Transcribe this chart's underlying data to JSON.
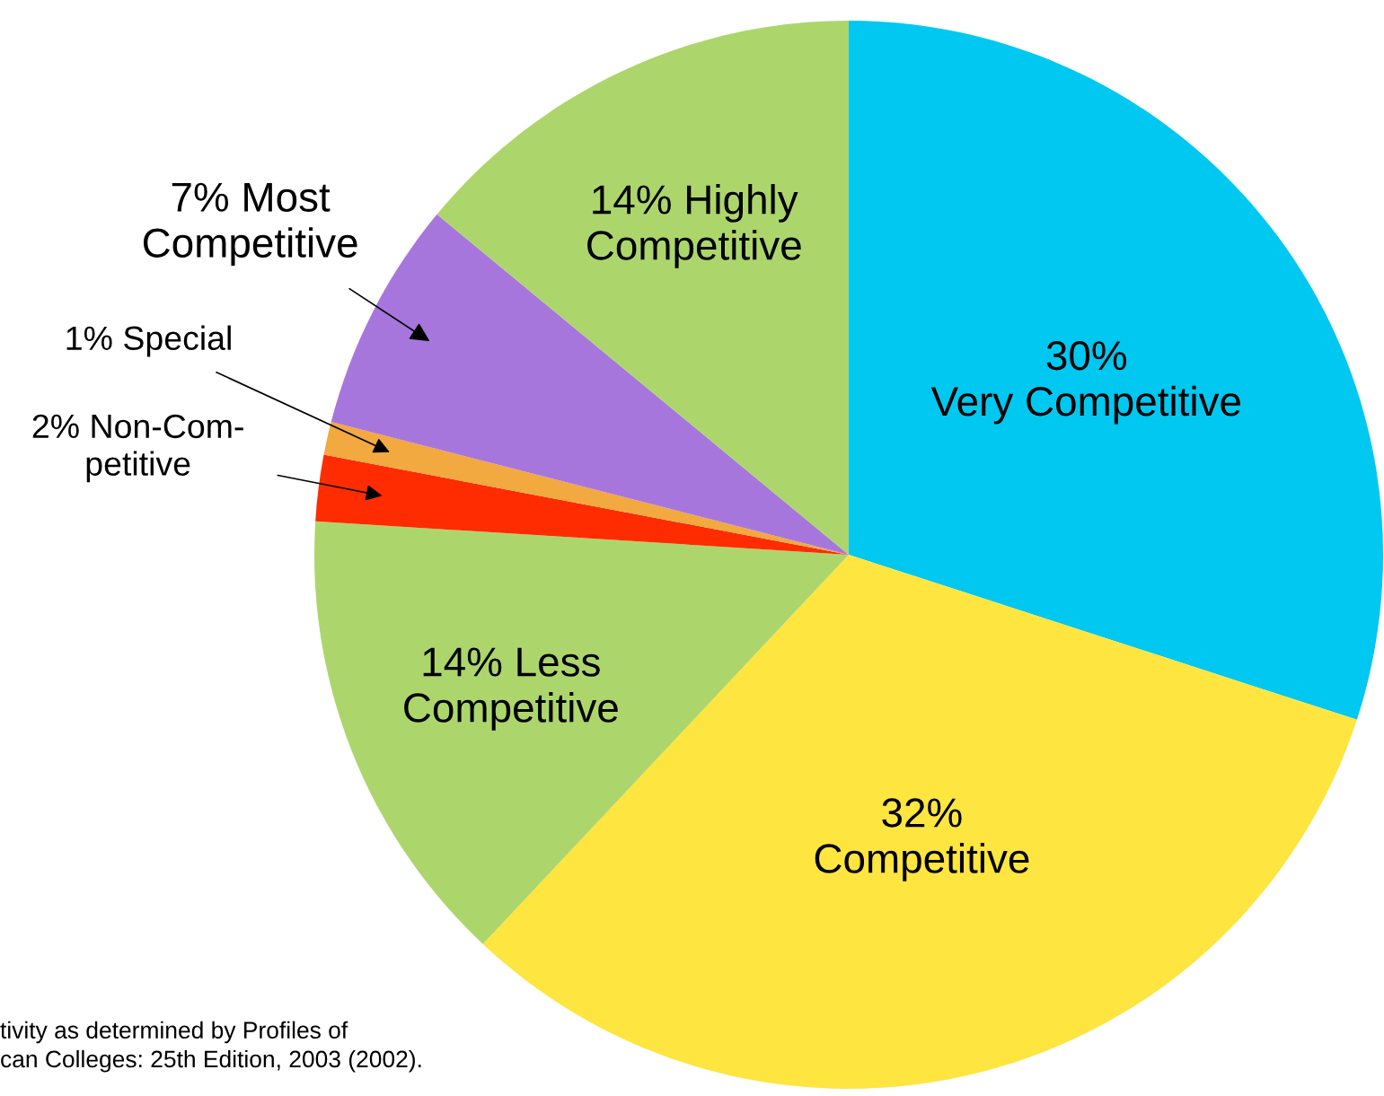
{
  "chart_data": {
    "type": "pie",
    "categories": [
      "30%\nVery Competitive",
      "32%\nCompetitive",
      "14% Less\nCompetitive",
      "2% Non-Com-\npetitive",
      "1% Special",
      "7% Most\nCompetitive",
      "14% Highly\nCompetitive"
    ],
    "values": [
      30,
      32,
      14,
      2,
      1,
      7,
      14
    ],
    "colors": [
      "#00c8f0",
      "#fee53f",
      "#acd66c",
      "#fe2c00",
      "#f2a93f",
      "#a776dd",
      "#acd66c"
    ],
    "annotations": [
      "tivity as determined by Profiles of\ncan Colleges: 25th Edition, 2003 (2002)."
    ]
  }
}
